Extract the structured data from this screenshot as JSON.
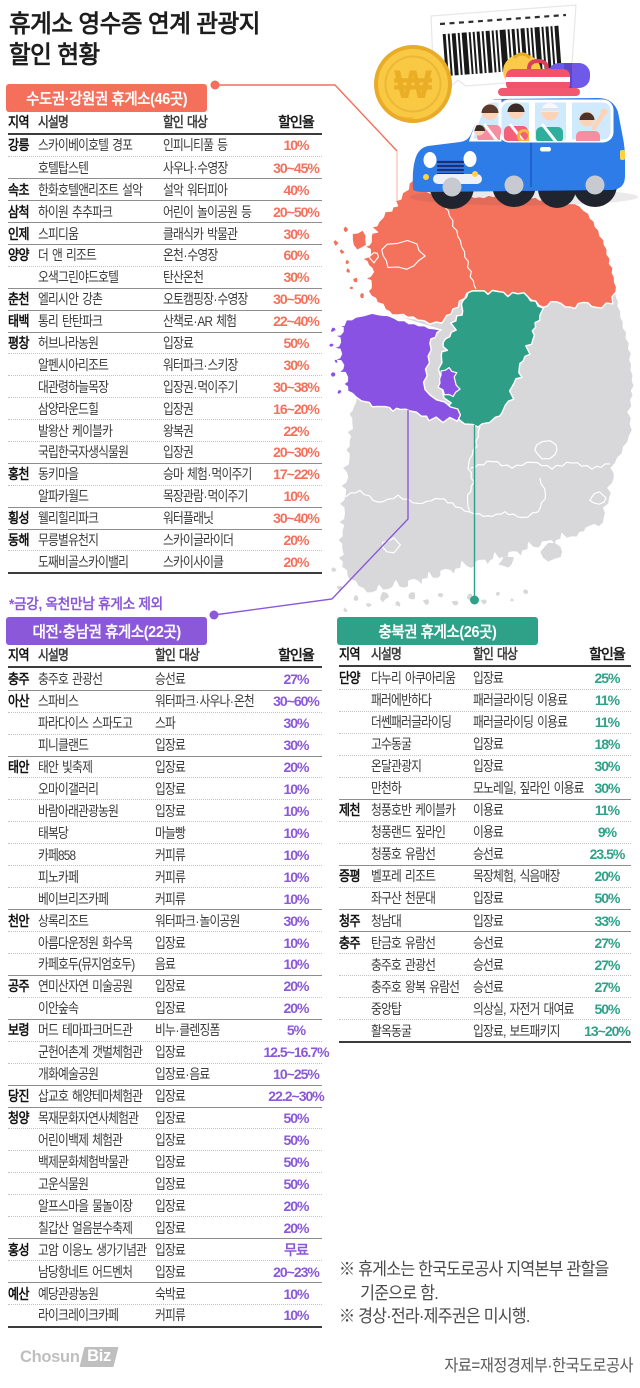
{
  "title": "휴게소 영수증 연계 관광지\n할인 현황",
  "colors": {
    "metro_accent": "#f4705b",
    "daejeon_accent": "#8a58d8",
    "chungbuk_accent": "#2fa189",
    "map_metro": "#f4715c",
    "map_daejeon": "#8a52e2",
    "map_chungbuk": "#2f9e87",
    "map_other": "#d9d9dc"
  },
  "tables": [
    {
      "id": "metro-gangwon",
      "title": "수도권·강원권 휴게소(46곳)",
      "accent": "#f4705b",
      "columns": {
        "region": "지역",
        "name": "시설명",
        "target": "할인 대상",
        "rate": "할인율"
      },
      "rows": [
        [
          "강릉",
          "스카이베이호텔 경포",
          "인피니티풀 등",
          "10%"
        ],
        [
          "",
          "호텔탑스텐",
          "사우나·수영장",
          "30~45%"
        ],
        [
          "속초",
          "한화호텔앤리조트 설악",
          "설악 워터피아",
          "40%"
        ],
        [
          "삼척",
          "하이원 추추파크",
          "어린이 놀이공원 등",
          "20~50%"
        ],
        [
          "인제",
          "스피디움",
          "클래식카 박물관",
          "30%"
        ],
        [
          "양양",
          "더 앤 리조트",
          "온천·수영장",
          "60%"
        ],
        [
          "",
          "오색그린야드호텔",
          "탄산온천",
          "30%"
        ],
        [
          "춘천",
          "엘리시안 강촌",
          "오토캠핑장·수영장",
          "30~50%"
        ],
        [
          "태백",
          "통리 탄탄파크",
          "산책로·AR 체험",
          "22~40%"
        ],
        [
          "평창",
          "허브나라농원",
          "입장료",
          "50%"
        ],
        [
          "",
          "알펜시아리조트",
          "워터파크·스키장",
          "30%"
        ],
        [
          "",
          "대관령하늘목장",
          "입장권·먹이주기",
          "30~38%"
        ],
        [
          "",
          "삼양라운드힐",
          "입장권",
          "16~20%"
        ],
        [
          "",
          "발왕산 케이블카",
          "왕복권",
          "22%"
        ],
        [
          "",
          "국립한국자생식물원",
          "입장권",
          "20~30%"
        ],
        [
          "홍천",
          "동키마을",
          "승마 체험·먹이주기",
          "17~22%"
        ],
        [
          "",
          "알파카월드",
          "목장관람·먹이주기",
          "10%"
        ],
        [
          "횡성",
          "웰리힐리파크",
          "워터플래닛",
          "30~40%"
        ],
        [
          "동해",
          "무릉별유천지",
          "스카이글라이더",
          "20%"
        ],
        [
          "",
          "도째비골스카이밸리",
          "스카이사이클",
          "20%"
        ]
      ]
    },
    {
      "id": "daejeon-chungnam",
      "title": "대전·충남권 휴게소(22곳)",
      "accent": "#8a58d8",
      "columns": {
        "region": "지역",
        "name": "시설명",
        "target": "할인 대상",
        "rate": "할인율"
      },
      "rows": [
        [
          "충주",
          "충주호 관광선",
          "승선료",
          "27%"
        ],
        [
          "아산",
          "스파비스",
          "워터파크·사우나·온천",
          "30~60%"
        ],
        [
          "",
          "파라다이스 스파도고",
          "스파",
          "30%"
        ],
        [
          "",
          "피니클랜드",
          "입장료",
          "30%"
        ],
        [
          "태안",
          "태안 빛축제",
          "입장료",
          "20%"
        ],
        [
          "",
          "오마이갤러리",
          "입장료",
          "10%"
        ],
        [
          "",
          "바람아래관광농원",
          "입장료",
          "10%"
        ],
        [
          "",
          "태복당",
          "마늘빵",
          "10%"
        ],
        [
          "",
          "카페858",
          "커피류",
          "10%"
        ],
        [
          "",
          "피노카페",
          "커피류",
          "10%"
        ],
        [
          "",
          "베이브리즈카페",
          "커피류",
          "10%"
        ],
        [
          "천안",
          "상록리조트",
          "워터파크·놀이공원",
          "30%"
        ],
        [
          "",
          "아름다운정원 화수목",
          "입장료",
          "10%"
        ],
        [
          "",
          "카페호두(뮤지엄호두)",
          "음료",
          "10%"
        ],
        [
          "공주",
          "연미산자연 미술공원",
          "입장료",
          "20%"
        ],
        [
          "",
          "이안숲속",
          "입장료",
          "20%"
        ],
        [
          "보령",
          "머드 테마파크머드관",
          "비누·클렌징폼",
          "5%"
        ],
        [
          "",
          "군헌어촌계 갯벌체험관",
          "입장료",
          "12.5~16.7%"
        ],
        [
          "",
          "개화예술공원",
          "입장료·음료",
          "10~25%"
        ],
        [
          "당진",
          "삽교호 해양테마체험관",
          "입장료",
          "22.2~30%"
        ],
        [
          "청양",
          "목재문화자연사체험관",
          "입장료",
          "50%"
        ],
        [
          "",
          "어린이백제 체험관",
          "입장료",
          "50%"
        ],
        [
          "",
          "백제문화체험박물관",
          "입장료",
          "50%"
        ],
        [
          "",
          "고운식물원",
          "입장료",
          "50%"
        ],
        [
          "",
          "알프스마을 물놀이장",
          "입장료",
          "20%"
        ],
        [
          "",
          "칠갑산 얼음분수축제",
          "입장료",
          "20%"
        ],
        [
          "홍성",
          "고암 이응노 생가기념관",
          "입장료",
          "무료"
        ],
        [
          "",
          "남당항네트 어드벤처",
          "입장료",
          "20~23%"
        ],
        [
          "예산",
          "예당관광농원",
          "숙박료",
          "10%"
        ],
        [
          "",
          "라이크레이크카페",
          "커피류",
          "10%"
        ]
      ]
    },
    {
      "id": "chungbuk",
      "title": "충북권 휴게소(26곳)",
      "accent": "#2fa189",
      "columns": {
        "region": "지역",
        "name": "시설명",
        "target": "할인 대상",
        "rate": "할인율"
      },
      "rows": [
        [
          "단양",
          "다누리 아쿠아리움",
          "입장료",
          "25%"
        ],
        [
          "",
          "패러에반하다",
          "패러글라이딩 이용료",
          "11%"
        ],
        [
          "",
          "더쎈패러글라이딩",
          "패러글라이딩 이용료",
          "11%"
        ],
        [
          "",
          "고수동굴",
          "입장료",
          "18%"
        ],
        [
          "",
          "온달관광지",
          "입장료",
          "30%"
        ],
        [
          "",
          "만천하",
          "모노레일, 짚라인 이용료",
          "30%"
        ],
        [
          "제천",
          "청풍호반 케이블카",
          "이용료",
          "11%"
        ],
        [
          "",
          "청풍랜드 짚라인",
          "이용료",
          "9%"
        ],
        [
          "",
          "청풍호 유람선",
          "승선료",
          "23.5%"
        ],
        [
          "증평",
          "벨포레 리조트",
          "목장체험, 식음매장",
          "20%"
        ],
        [
          "",
          "좌구산 천문대",
          "입장료",
          "50%"
        ],
        [
          "청주",
          "청남대",
          "입장료",
          "33%"
        ],
        [
          "충주",
          "탄금호 유람선",
          "승선료",
          "27%"
        ],
        [
          "",
          "충주호 관광선",
          "승선료",
          "27%"
        ],
        [
          "",
          "충주호 왕복 유람선",
          "승선료",
          "27%"
        ],
        [
          "",
          "중앙탑",
          "의상실, 자전거 대여료",
          "50%"
        ],
        [
          "",
          "활옥동굴",
          "입장료, 보트패키지",
          "13~20%"
        ]
      ]
    }
  ],
  "footnote_table2": "*금강, 옥천만남 휴게소 제외",
  "notes": [
    "※ 휴게소는 한국도로공사 지역본부 관할을 기준으로 함.",
    "※ 경상·전라·제주권은 미시행."
  ],
  "source": "자료=재정경제부·한국도로공사",
  "logo": {
    "part1": "Chosun",
    "part2": "Biz"
  },
  "illustration": {
    "coin_symbol": "₩",
    "map_regions": [
      "수도권·강원권",
      "대전·충남권",
      "충북권"
    ]
  }
}
